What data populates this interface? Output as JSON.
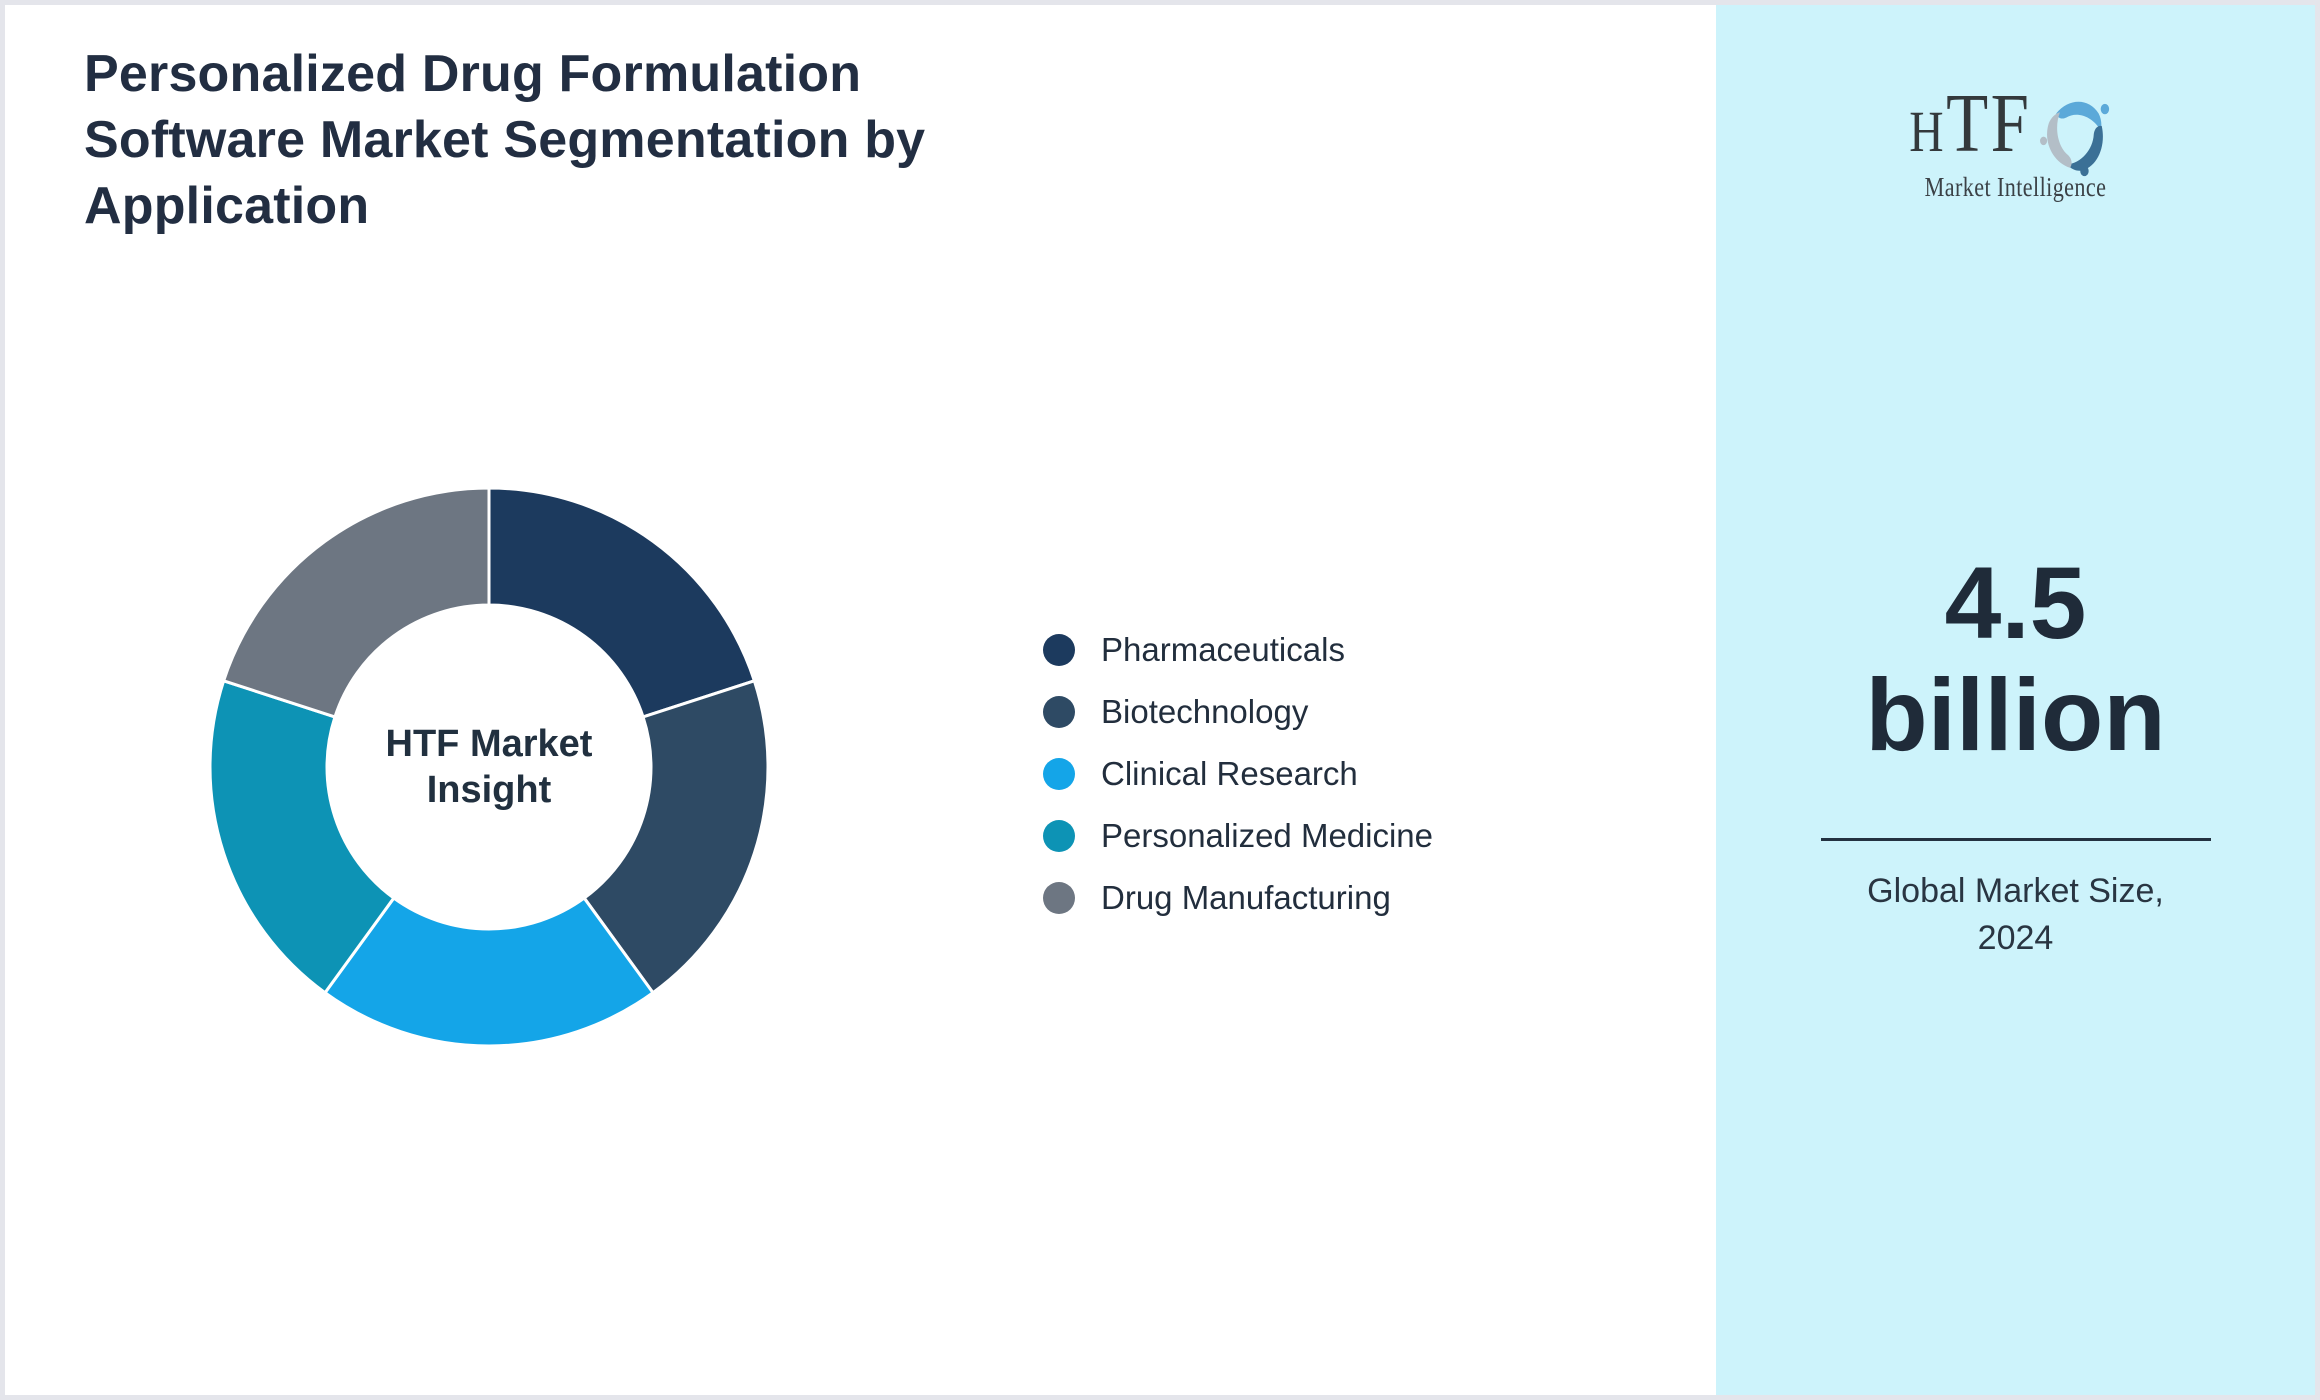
{
  "title": "Personalized Drug Formulation Software Market Segmentation by Application",
  "chart_data": {
    "type": "pie",
    "subtype": "donut",
    "center_label": "HTF Market Insight",
    "start_angle_deg": 0,
    "direction": "clockwise",
    "inner_radius_ratio": 0.58,
    "legend_position": "right",
    "gap_stroke_color": "#ffffff",
    "segments": [
      {
        "label": "Pharmaceuticals",
        "value": 20,
        "color": "#1c3a5e"
      },
      {
        "label": "Biotechnology",
        "value": 20,
        "color": "#2e4a64"
      },
      {
        "label": "Clinical Research",
        "value": 20,
        "color": "#14a5e8"
      },
      {
        "label": "Personalized Medicine",
        "value": 20,
        "color": "#0d93b5"
      },
      {
        "label": "Drug Manufacturing",
        "value": 20,
        "color": "#6d7682"
      }
    ]
  },
  "logo": {
    "letter_h": "H",
    "letters_tf": "TF",
    "subtitle": "Market Intelligence"
  },
  "panel": {
    "background": "#cdf3fb",
    "value_line1": "4.5",
    "value_line2": "billion",
    "caption_line1": "Global Market Size,",
    "caption_line2": "2024"
  }
}
